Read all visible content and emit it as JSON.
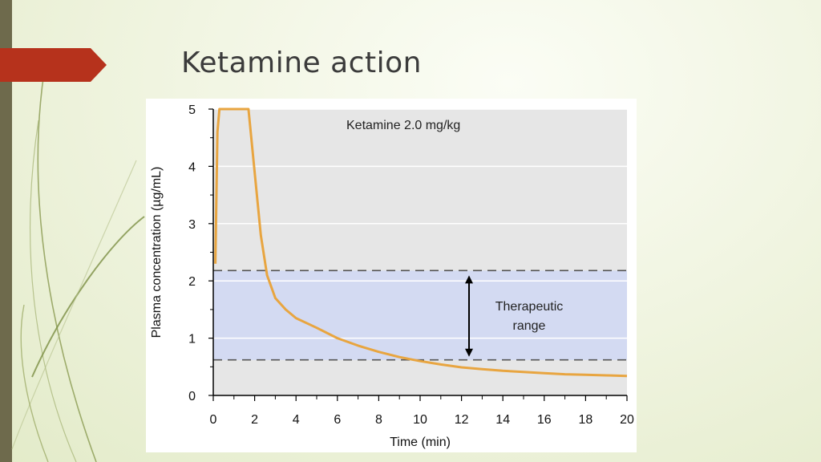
{
  "slide": {
    "title": "Ketamine action",
    "colors": {
      "background": "#eef3dc",
      "left_bar": "#6e6a4c",
      "accent_tab": "#b6321c",
      "title_text": "#3b3b3b"
    }
  },
  "chart_data": {
    "type": "line",
    "title": "",
    "xlabel": "Time (min)",
    "ylabel": "Plasma concentration (µg/mL)",
    "xlim": [
      0,
      20
    ],
    "ylim": [
      0,
      5
    ],
    "x_ticks": [
      0,
      2,
      4,
      6,
      8,
      10,
      12,
      14,
      16,
      18,
      20
    ],
    "y_ticks": [
      0,
      1,
      2,
      3,
      4,
      5
    ],
    "grid": "horizontal",
    "annotation": "Ketamine 2.0 mg/kg",
    "series": [
      {
        "color": "#e8a540",
        "x": [
          0.1,
          0.2,
          0.3,
          1.7,
          2.0,
          2.3,
          2.6,
          3.0,
          3.5,
          4.0,
          5.0,
          6.0,
          7.0,
          8.0,
          9.0,
          10.0,
          11.0,
          12.0,
          13.0,
          14.0,
          15.0,
          16.0,
          17.0,
          18.0,
          19.0,
          20.0
        ],
        "y": [
          2.3,
          4.6,
          5.0,
          5.0,
          3.9,
          2.8,
          2.1,
          1.7,
          1.5,
          1.35,
          1.18,
          1.0,
          0.87,
          0.76,
          0.67,
          0.6,
          0.54,
          0.49,
          0.46,
          0.43,
          0.41,
          0.39,
          0.37,
          0.36,
          0.35,
          0.34
        ]
      }
    ],
    "band": {
      "lower": 0.62,
      "upper": 2.18,
      "fill": "#d3daf2",
      "label_line1": "Therapeutic",
      "label_line2": "range"
    }
  }
}
